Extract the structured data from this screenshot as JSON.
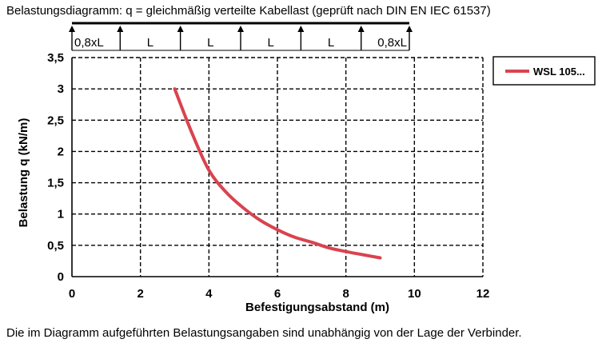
{
  "title": "Belastungsdiagramm: q = gleichmäßig verteilte Kabellast (geprüft nach DIN EN IEC 61537)",
  "beam": {
    "segment_labels": [
      "0,8xL",
      "L",
      "L",
      "L",
      "L",
      "0,8xL"
    ]
  },
  "chart_data": {
    "type": "line",
    "xlabel": "Befestigungsabstand (m)",
    "ylabel": "Belastung q (kN/m)",
    "xlim": [
      0,
      12
    ],
    "ylim": [
      0,
      3.5
    ],
    "x_ticks": [
      0,
      2,
      4,
      6,
      8,
      10,
      12
    ],
    "x_tick_labels": [
      "0",
      "2",
      "4",
      "6",
      "8",
      "10",
      "12"
    ],
    "y_ticks": [
      0,
      0.5,
      1,
      1.5,
      2,
      2.5,
      3,
      3.5
    ],
    "y_tick_labels": [
      "0",
      "0,5",
      "1",
      "1,5",
      "2",
      "2,5",
      "3",
      "3,5"
    ],
    "grid": true,
    "legend_position": "right",
    "series": [
      {
        "name": "WSL 105...",
        "color": "#d9434e",
        "x": [
          3.0,
          3.5,
          4.0,
          4.5,
          5.0,
          5.5,
          6.0,
          6.5,
          7.0,
          7.5,
          8.0,
          8.5,
          9.0
        ],
        "y": [
          3.0,
          2.3,
          1.7,
          1.35,
          1.1,
          0.9,
          0.75,
          0.63,
          0.55,
          0.46,
          0.4,
          0.35,
          0.3
        ]
      }
    ]
  },
  "footnote": "Die im Diagramm aufgeführten Belastungsangaben sind unabhängig von der Lage der Verbinder."
}
